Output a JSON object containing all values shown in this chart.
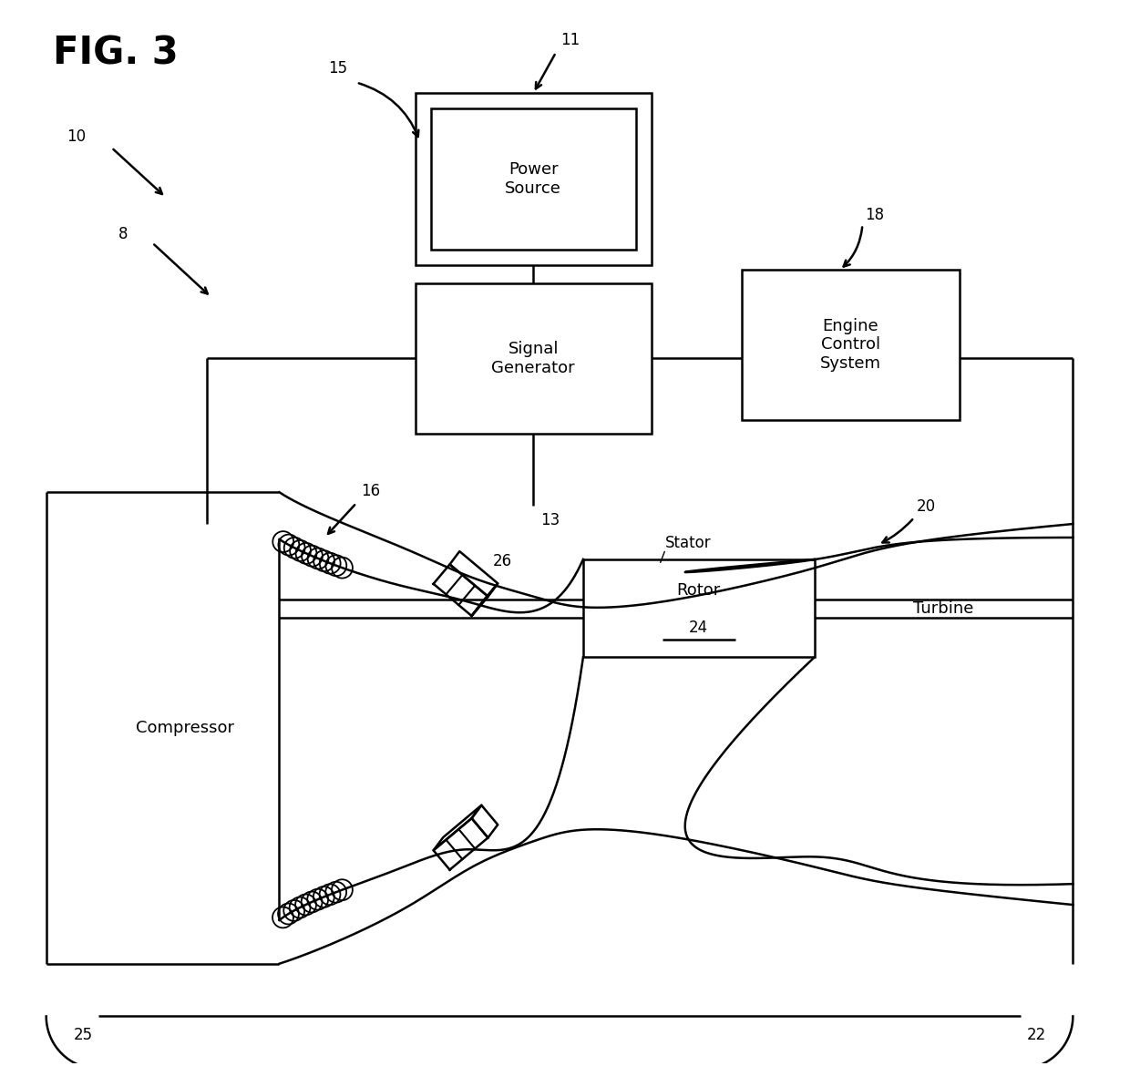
{
  "bg_color": "#ffffff",
  "line_color": "#000000",
  "fig_width": 12.4,
  "fig_height": 11.7,
  "labels": {
    "fig_title": "FIG. 3",
    "power_source": "Power\nSource",
    "signal_generator": "Signal\nGenerator",
    "engine_control": "Engine\nControl\nSystem",
    "compressor": "Compressor",
    "rotor": "Rotor",
    "rotor_num": "24",
    "turbine": "Turbine",
    "stator": "Stator",
    "num_10": "10",
    "num_8": "8",
    "num_11": "11",
    "num_13": "13",
    "num_15": "15",
    "num_16": "16",
    "num_18": "18",
    "num_20": "20",
    "num_22": "22",
    "num_25": "25",
    "num_26": "26"
  }
}
